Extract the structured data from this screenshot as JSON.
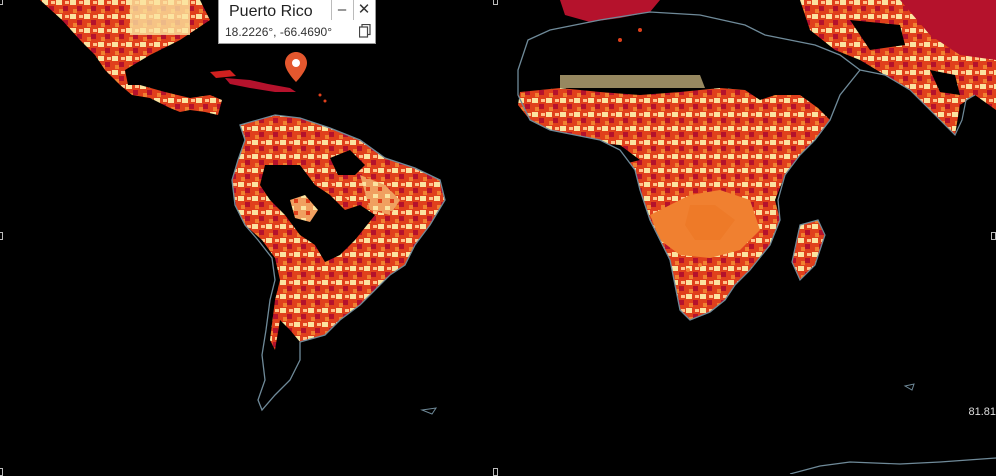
{
  "popup": {
    "title": "Puerto Rico",
    "coords": "18.2226°, -66.4690°",
    "minimize_icon": "minus-icon",
    "close_icon": "close-icon",
    "copy_icon": "copy-icon"
  },
  "marker": {
    "icon": "map-pin-icon",
    "color": "#e4572e"
  },
  "readout": {
    "value": "81.81"
  },
  "colors": {
    "background": "#000000",
    "coastline": "#6f8a99",
    "heat_high": "#b5122c",
    "heat_mid": "#ea4d1c",
    "heat_orange": "#f08030",
    "heat_low": "#fbe3a0"
  }
}
